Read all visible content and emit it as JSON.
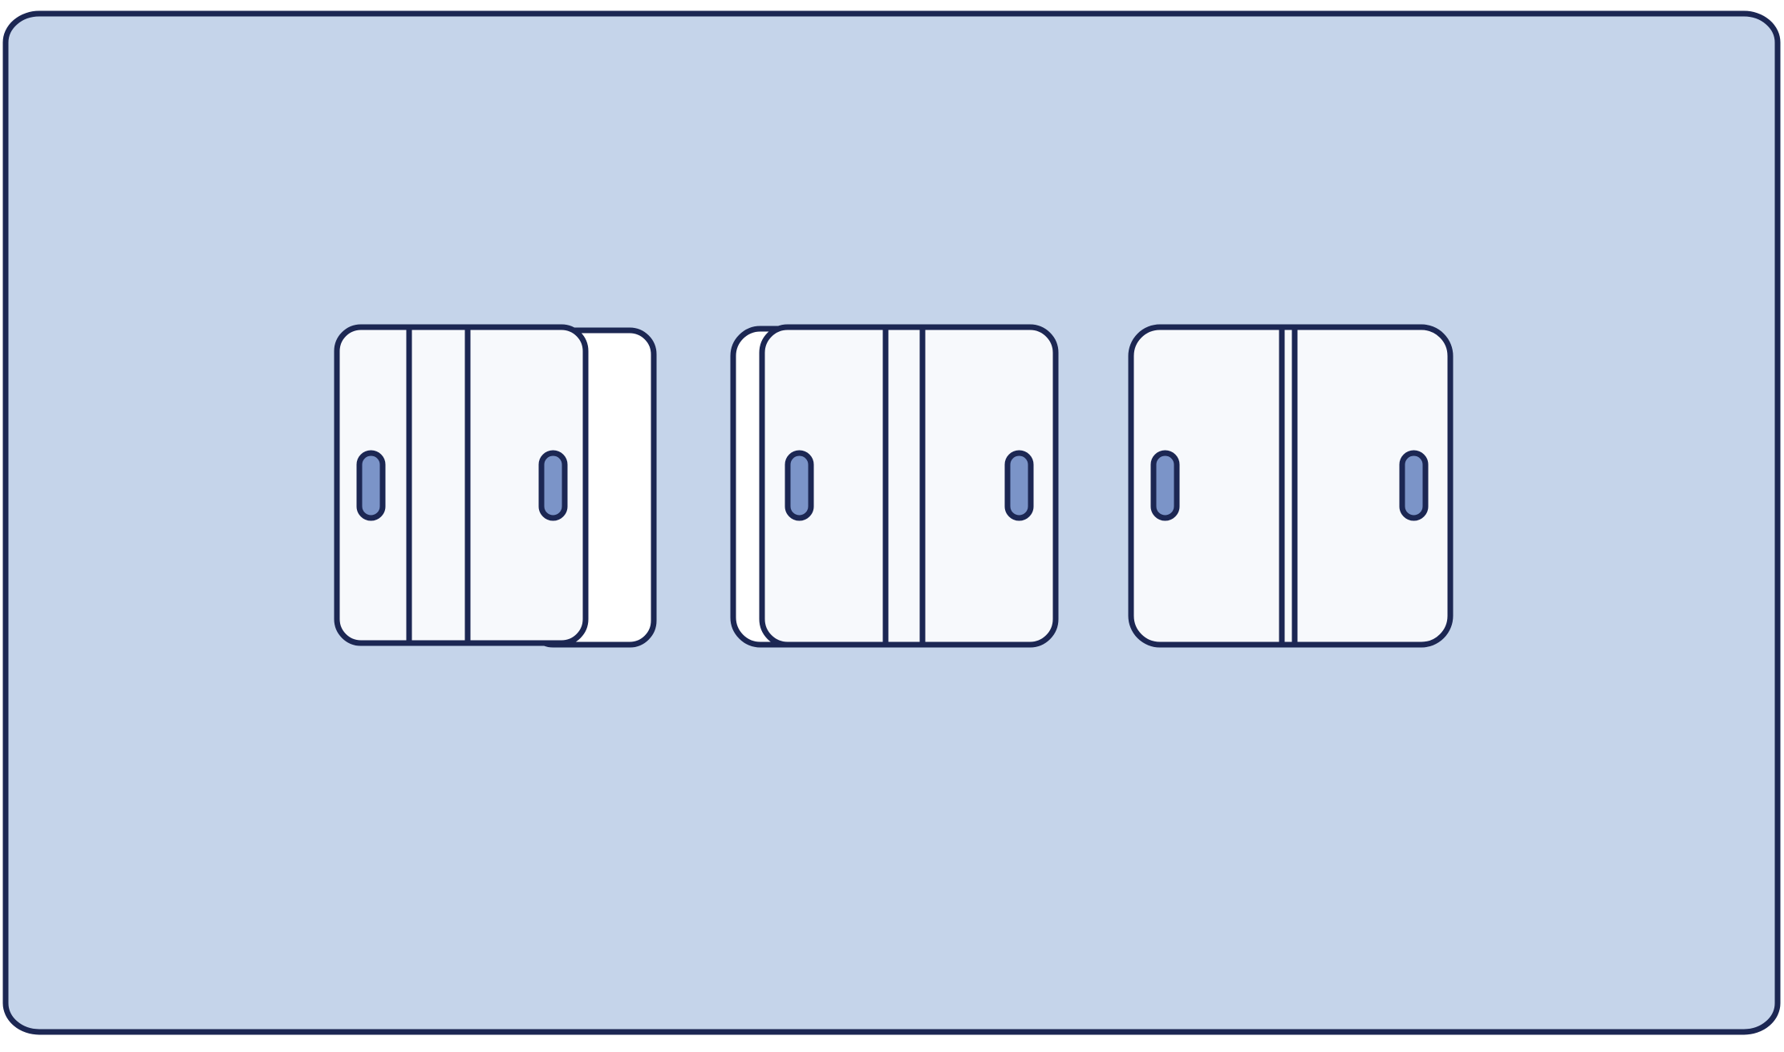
{
  "colors": {
    "panel_fill": "#c5d4ea",
    "outline": "#1c2753",
    "door_fill": "#f7f9fc",
    "back_panel_fill": "#ffffff",
    "handle_fill": "#7b94c8",
    "page_background": "#ffffff"
  },
  "illustrations": [
    {
      "name": "sliding-door-open-right-icon",
      "state": "doors overlapped, opening to the right"
    },
    {
      "name": "sliding-door-open-left-icon",
      "state": "doors overlapped, opening to the left"
    },
    {
      "name": "sliding-door-closed-icon",
      "state": "doors closed"
    }
  ]
}
